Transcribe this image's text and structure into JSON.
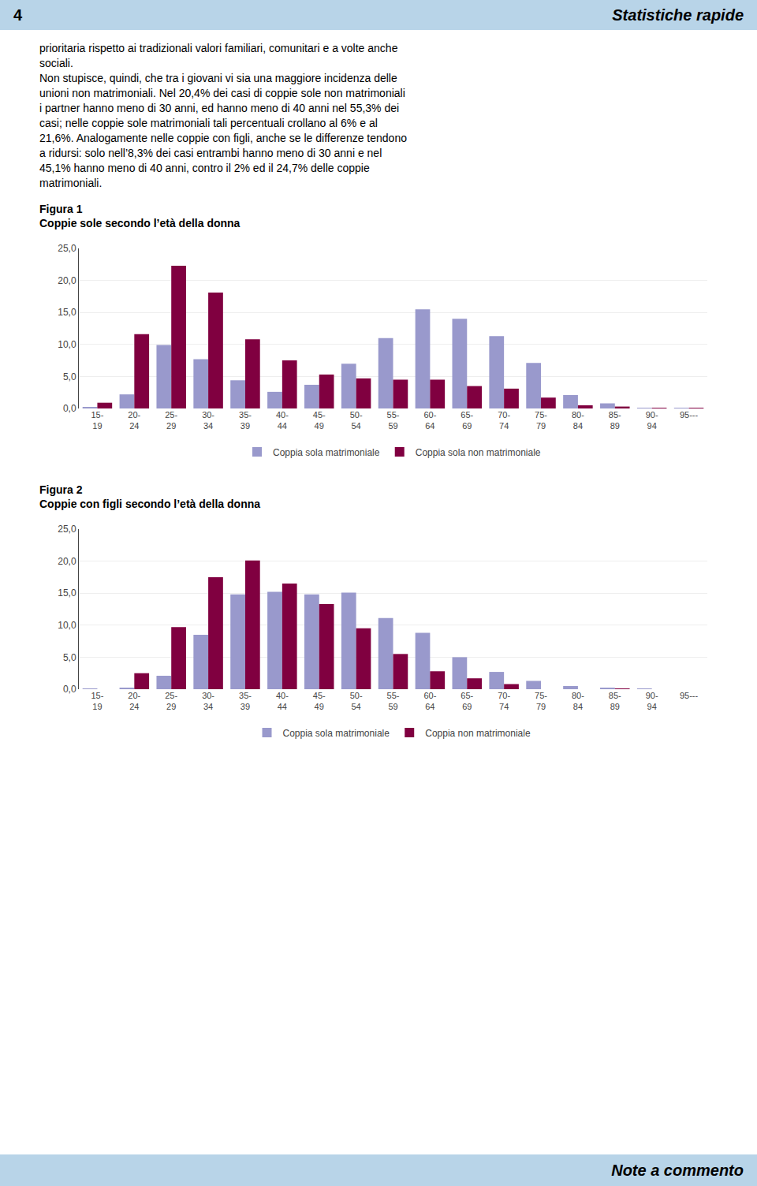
{
  "header": {
    "left": "4",
    "right": "Statistiche rapide",
    "color": "#b8d4e8"
  },
  "footer": {
    "right": "Note a commento",
    "color": "#b8d4e8"
  },
  "body_lines": [
    "prioritaria rispetto ai tradizionali valori familiari, comunitari e a volte anche",
    "sociali.",
    "Non stupisce, quindi, che tra i giovani vi sia una maggiore incidenza delle",
    "unioni non matrimoniali. Nel 20,4% dei casi di coppie sole non matrimoniali",
    "i partner hanno meno di 30 anni, ed hanno meno di 40 anni nel 55,3% dei",
    "casi; nelle coppie sole matrimoniali tali percentuali crollano al 6% e al",
    "21,6%. Analogamente nelle coppie con figli, anche se le differenze tendono",
    "a ridursi: solo nell’8,3% dei casi entrambi hanno meno di 30 anni e nel",
    "45,1% hanno meno di 40 anni, contro il 2% ed il 24,7% delle coppie",
    "matrimoniali."
  ],
  "chart_data": [
    {
      "type": "bar",
      "title": "Figura 1",
      "subtitle": "Coppie sole secondo l’età della donna",
      "categories": [
        "15-\n19",
        "20-\n24",
        "25-\n29",
        "30-\n34",
        "35-\n39",
        "40-\n44",
        "45-\n49",
        "50-\n54",
        "55-\n59",
        "60-\n64",
        "65-\n69",
        "70-\n74",
        "75-\n79",
        "80-\n84",
        "85-\n89",
        "90-\n94",
        "95---"
      ],
      "series": [
        {
          "name": "Coppia sola matrimoniale",
          "color": "#9999cc",
          "values": [
            0.2,
            2.2,
            9.9,
            7.7,
            4.4,
            2.6,
            3.7,
            7.0,
            11.0,
            15.5,
            14.0,
            11.3,
            7.1,
            2.1,
            0.8,
            0.1,
            0.05
          ]
        },
        {
          "name": "Coppia sola non matrimoniale",
          "color": "#800040",
          "values": [
            0.9,
            11.6,
            22.3,
            18.1,
            10.8,
            7.5,
            5.3,
            4.7,
            4.5,
            4.5,
            3.5,
            3.1,
            1.7,
            0.5,
            0.3,
            0.1,
            0.05
          ]
        }
      ],
      "ylim": [
        0,
        25
      ],
      "yticks": [
        {
          "value": 0,
          "label": "0,0"
        },
        {
          "value": 5,
          "label": "5,0"
        },
        {
          "value": 10,
          "label": "10,0"
        },
        {
          "value": 15,
          "label": "15,0"
        },
        {
          "value": 20,
          "label": "20,0"
        },
        {
          "value": 25,
          "label": "25,0"
        }
      ],
      "grid": true,
      "legend": "bottom"
    },
    {
      "type": "bar",
      "title": "Figura 2",
      "subtitle": "Coppie con figli secondo l’età della donna",
      "categories": [
        "15-\n19",
        "20-\n24",
        "25-\n29",
        "30-\n34",
        "35-\n39",
        "40-\n44",
        "45-\n49",
        "50-\n54",
        "55-\n59",
        "60-\n64",
        "65-\n69",
        "70-\n74",
        "75-\n79",
        "80-\n84",
        "85-\n89",
        "90-\n94",
        "95---"
      ],
      "series": [
        {
          "name": "Coppia sola matrimoniale",
          "color": "#9999cc",
          "values": [
            0.05,
            0.2,
            2.1,
            8.5,
            14.8,
            15.2,
            14.8,
            15.1,
            11.1,
            8.8,
            5.0,
            2.7,
            1.3,
            0.5,
            0.2,
            0.05,
            0.0
          ]
        },
        {
          "name": "Coppia non matrimoniale",
          "color": "#800040",
          "values": [
            0.0,
            2.5,
            9.7,
            17.5,
            20.1,
            16.5,
            13.3,
            9.5,
            5.5,
            2.8,
            1.7,
            0.8,
            0.0,
            0.0,
            0.1,
            0.0,
            0.0
          ]
        }
      ],
      "ylim": [
        0,
        25
      ],
      "yticks": [
        {
          "value": 0,
          "label": "0,0"
        },
        {
          "value": 5,
          "label": "5,0"
        },
        {
          "value": 10,
          "label": "10,0"
        },
        {
          "value": 15,
          "label": "15,0"
        },
        {
          "value": 20,
          "label": "20,0"
        },
        {
          "value": 25,
          "label": "25,0"
        }
      ],
      "grid": true,
      "legend": "bottom"
    }
  ]
}
